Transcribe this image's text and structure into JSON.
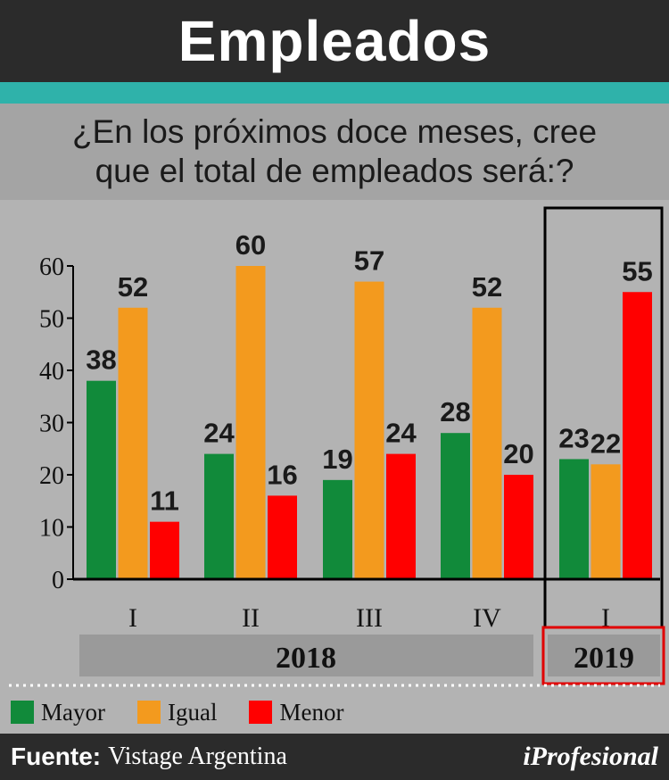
{
  "header": {
    "title": "Empleados"
  },
  "question": {
    "line1": "¿En los próximos doce meses, cree",
    "line2": "que el total de empleados será:?"
  },
  "chart_data": {
    "type": "bar",
    "categories": [
      "I",
      "II",
      "III",
      "IV",
      "I"
    ],
    "year_groups": [
      {
        "label": "2018",
        "categories": [
          0,
          1,
          2,
          3
        ]
      },
      {
        "label": "2019",
        "categories": [
          4
        ]
      }
    ],
    "series": [
      {
        "name": "Mayor",
        "color": "#118a3a",
        "values": [
          38,
          24,
          19,
          28,
          23
        ]
      },
      {
        "name": "Igual",
        "color": "#f39a1e",
        "values": [
          52,
          60,
          57,
          52,
          22
        ]
      },
      {
        "name": "Menor",
        "color": "#ff0000",
        "values": [
          11,
          16,
          24,
          20,
          55
        ]
      }
    ],
    "y_ticks": [
      0,
      10,
      20,
      30,
      40,
      50,
      60
    ],
    "ylim": [
      0,
      60
    ],
    "grid": false,
    "legend_position": "bottom-left",
    "highlight_category": 4
  },
  "footer": {
    "source_key": "Fuente:",
    "source_value": "Vistage Argentina",
    "brand": "iProfesional"
  }
}
